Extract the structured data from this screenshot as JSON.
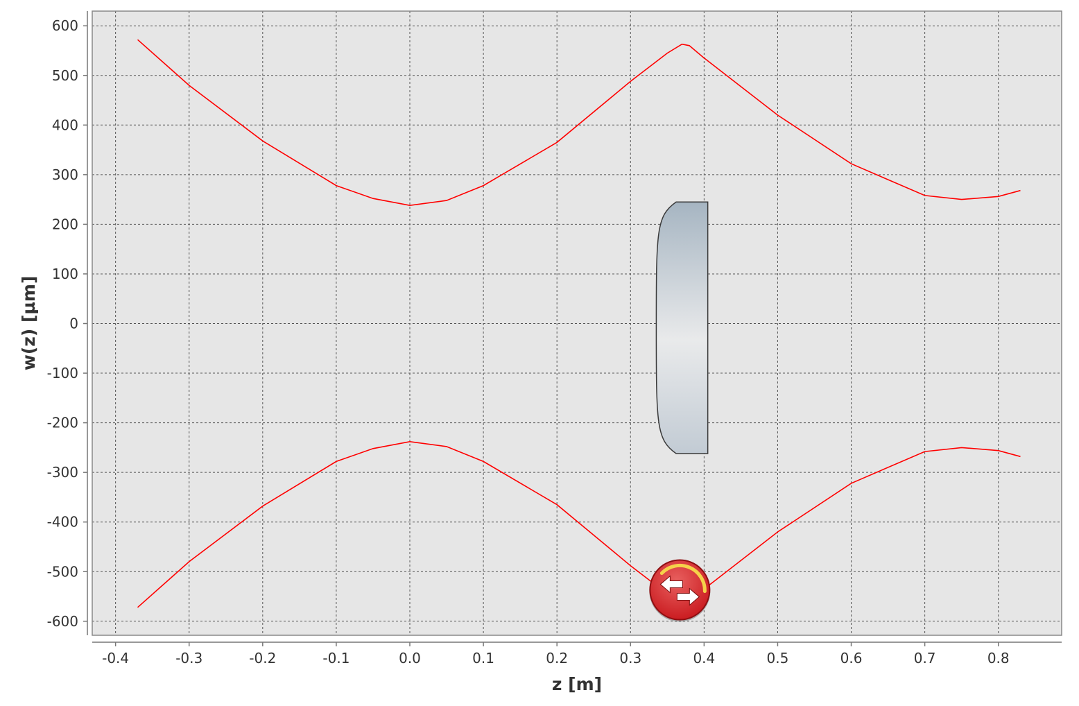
{
  "chart_data": {
    "type": "line",
    "title": "",
    "xlabel": "z [m]",
    "ylabel": "w(z) [µm]",
    "xlim": [
      -0.43,
      0.89
    ],
    "ylim": [
      -630,
      630
    ],
    "grid": true,
    "x_ticks": [
      -0.4,
      -0.3,
      -0.2,
      -0.1,
      0.0,
      0.1,
      0.2,
      0.3,
      0.4,
      0.5,
      0.6,
      0.7,
      0.8
    ],
    "x_tick_labels": [
      "-0.4",
      "-0.3",
      "-0.2",
      "-0.1",
      "0.0",
      "0.1",
      "0.2",
      "0.3",
      "0.4",
      "0.5",
      "0.6",
      "0.7",
      "0.8"
    ],
    "y_ticks": [
      600,
      500,
      400,
      300,
      200,
      100,
      0,
      -100,
      -200,
      -300,
      -400,
      -500,
      -600
    ],
    "y_tick_labels": [
      "600",
      "500",
      "400",
      "300",
      "200",
      "100",
      "0",
      "-100",
      "-200",
      "-300",
      "-400",
      "-500",
      "-600"
    ],
    "series": [
      {
        "color": "#ff0000",
        "x": [
          -0.37,
          -0.3,
          -0.2,
          -0.1,
          -0.05,
          0.0,
          0.05,
          0.1,
          0.2,
          0.3,
          0.35,
          0.37,
          0.38,
          0.4,
          0.5,
          0.6,
          0.7,
          0.75,
          0.8,
          0.83
        ],
        "y": [
          572,
          480,
          368,
          278,
          252,
          238,
          248,
          278,
          365,
          488,
          545,
          563,
          560,
          535,
          420,
          322,
          258,
          250,
          256,
          268
        ]
      },
      {
        "color": "#ff0000",
        "x": [
          -0.37,
          -0.3,
          -0.2,
          -0.1,
          -0.05,
          0.0,
          0.05,
          0.1,
          0.2,
          0.3,
          0.35,
          0.37,
          0.38,
          0.4,
          0.5,
          0.6,
          0.7,
          0.75,
          0.8,
          0.83
        ],
        "y": [
          -572,
          -480,
          -368,
          -278,
          -252,
          -238,
          -248,
          -278,
          -365,
          -488,
          -545,
          -563,
          -560,
          -535,
          -420,
          -322,
          -258,
          -250,
          -256,
          -268
        ]
      }
    ],
    "lens": {
      "z_flat": 0.405,
      "z_vertex": 0.335,
      "z_edge": 0.362,
      "aperture_top": 245,
      "aperture_bottom": -262,
      "colors": [
        "#a6b5c2",
        "#e9eaeb",
        "#c2cbd4"
      ],
      "outline": "#3a3a3a"
    },
    "marker": {
      "name": "swap-control-icon",
      "x": 0.367,
      "y": -520,
      "colors": [
        "#c8171c",
        "#e8605f",
        "#f5d24a",
        "#ffffff"
      ]
    },
    "plot_background": "#e6e6e6",
    "grid_color": "#555555"
  }
}
